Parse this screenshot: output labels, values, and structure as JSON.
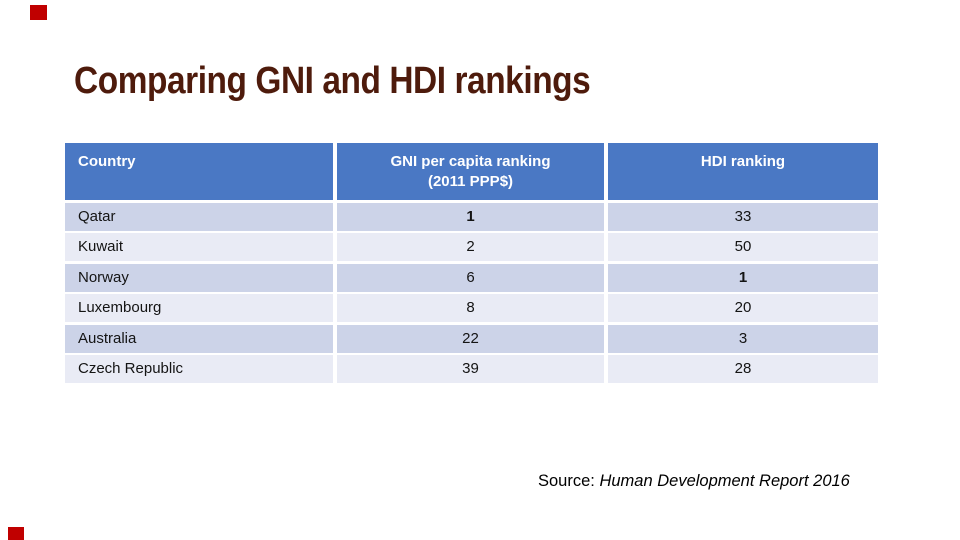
{
  "slide": {
    "title": "Comparing GNI and HDI rankings"
  },
  "table": {
    "header": {
      "country": "Country",
      "gni_line1": "GNI per capita ranking",
      "gni_line2": "(2011 PPP$)",
      "hdi": "HDI ranking"
    },
    "rows": [
      {
        "country": "Qatar",
        "gni": "1",
        "hdi": "33",
        "gni_bold": true,
        "hdi_bold": false
      },
      {
        "country": "Kuwait",
        "gni": "2",
        "hdi": "50",
        "gni_bold": false,
        "hdi_bold": false
      },
      {
        "country": "Norway",
        "gni": "6",
        "hdi": "1",
        "gni_bold": false,
        "hdi_bold": true
      },
      {
        "country": "Luxembourg",
        "gni": "8",
        "hdi": "20",
        "gni_bold": false,
        "hdi_bold": false
      },
      {
        "country": "Australia",
        "gni": "22",
        "hdi": "3",
        "gni_bold": false,
        "hdi_bold": false
      },
      {
        "country": "Czech Republic",
        "gni": "39",
        "hdi": "28",
        "gni_bold": false,
        "hdi_bold": false
      }
    ]
  },
  "source": {
    "prefix": "Source: ",
    "work": "Human Development Report 2016"
  },
  "colors": {
    "title": "#4E1B0C",
    "accent_red": "#C00000",
    "header_bg": "#4A78C4",
    "header_text": "#FFFFFF",
    "row_band_dark": "#CCD3E8",
    "row_band_light": "#E9EBF5",
    "body_text": "#141414"
  },
  "chart_data": {
    "type": "table",
    "title": "Comparing GNI and HDI rankings",
    "columns": [
      "Country",
      "GNI per capita ranking (2011 PPP$)",
      "HDI ranking"
    ],
    "rows": [
      [
        "Qatar",
        1,
        33
      ],
      [
        "Kuwait",
        2,
        50
      ],
      [
        "Norway",
        6,
        1
      ],
      [
        "Luxembourg",
        8,
        20
      ],
      [
        "Australia",
        22,
        3
      ],
      [
        "Czech Republic",
        39,
        28
      ]
    ],
    "source": "Source: Human Development Report 2016"
  }
}
